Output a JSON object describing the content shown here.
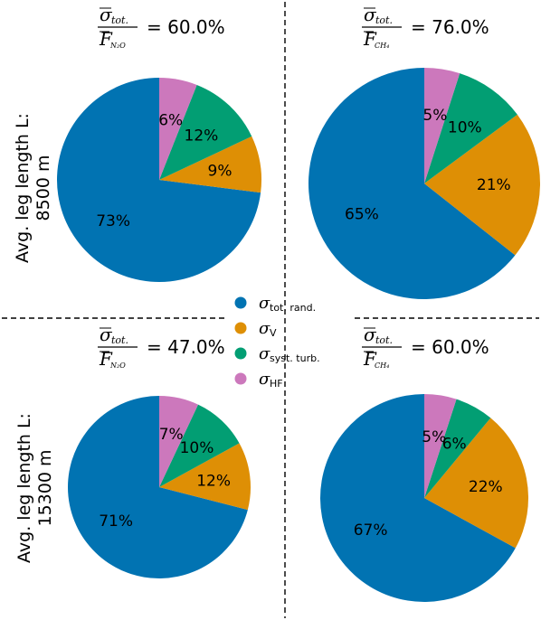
{
  "colors": {
    "tot_rand": "#0173b2",
    "sigma_v": "#de8f05",
    "syst_turb": "#029e73",
    "hf": "#cc78bc"
  },
  "legend": [
    {
      "symbol": "σ",
      "sub": "tot. rand.",
      "color_key": "tot_rand"
    },
    {
      "symbol": "σ",
      "sub": "V",
      "color_key": "sigma_v"
    },
    {
      "symbol": "σ",
      "sub": "syst. turb.",
      "color_key": "syst_turb"
    },
    {
      "symbol": "σ",
      "sub": "HF",
      "color_key": "hf"
    }
  ],
  "row_labels": [
    {
      "line1": "Avg. leg length L:",
      "line2": "8500 m"
    },
    {
      "line1": "Avg. leg length L:",
      "line2": "15300 m"
    }
  ],
  "chart_data": [
    {
      "type": "pie",
      "header": {
        "num_sym": "σ",
        "num_sub": "tot.",
        "den_sym": "F",
        "den_sub": "N₂O",
        "value": "= 60.0%"
      },
      "start_angle": 90,
      "direction": "counterclockwise",
      "slices": [
        {
          "label": "σ tot. rand.",
          "value": 73,
          "text": "73%",
          "color_key": "tot_rand"
        },
        {
          "label": "σ V",
          "value": 9,
          "text": "9%",
          "color_key": "sigma_v"
        },
        {
          "label": "σ syst. turb.",
          "value": 12,
          "text": "12%",
          "color_key": "syst_turb"
        },
        {
          "label": "σ HF",
          "value": 6,
          "text": "6%",
          "color_key": "hf"
        }
      ]
    },
    {
      "type": "pie",
      "header": {
        "num_sym": "σ",
        "num_sub": "tot.",
        "den_sym": "F",
        "den_sub": "CH₄",
        "value": "= 76.0%"
      },
      "start_angle": 90,
      "direction": "counterclockwise",
      "slices": [
        {
          "label": "σ tot. rand.",
          "value": 65,
          "text": "65%",
          "color_key": "tot_rand"
        },
        {
          "label": "σ V",
          "value": 21,
          "text": "21%",
          "color_key": "sigma_v"
        },
        {
          "label": "σ syst. turb.",
          "value": 10,
          "text": "10%",
          "color_key": "syst_turb"
        },
        {
          "label": "σ HF",
          "value": 5,
          "text": "5%",
          "color_key": "hf"
        }
      ]
    },
    {
      "type": "pie",
      "header": {
        "num_sym": "σ",
        "num_sub": "tot.",
        "den_sym": "F",
        "den_sub": "N₂O",
        "value": "= 47.0%"
      },
      "start_angle": 90,
      "direction": "counterclockwise",
      "slices": [
        {
          "label": "σ tot. rand.",
          "value": 71,
          "text": "71%",
          "color_key": "tot_rand"
        },
        {
          "label": "σ V",
          "value": 12,
          "text": "12%",
          "color_key": "sigma_v"
        },
        {
          "label": "σ syst. turb.",
          "value": 10,
          "text": "10%",
          "color_key": "syst_turb"
        },
        {
          "label": "σ HF",
          "value": 7,
          "text": "7%",
          "color_key": "hf"
        }
      ]
    },
    {
      "type": "pie",
      "header": {
        "num_sym": "σ",
        "num_sub": "tot.",
        "den_sym": "F",
        "den_sub": "CH₄",
        "value": "= 60.0%"
      },
      "start_angle": 90,
      "direction": "counterclockwise",
      "slices": [
        {
          "label": "σ tot. rand.",
          "value": 67,
          "text": "67%",
          "color_key": "tot_rand"
        },
        {
          "label": "σ V",
          "value": 22,
          "text": "22%",
          "color_key": "sigma_v"
        },
        {
          "label": "σ syst. turb.",
          "value": 6,
          "text": "6%",
          "color_key": "syst_turb"
        },
        {
          "label": "σ HF",
          "value": 5,
          "text": "5%",
          "color_key": "hf"
        }
      ]
    }
  ]
}
